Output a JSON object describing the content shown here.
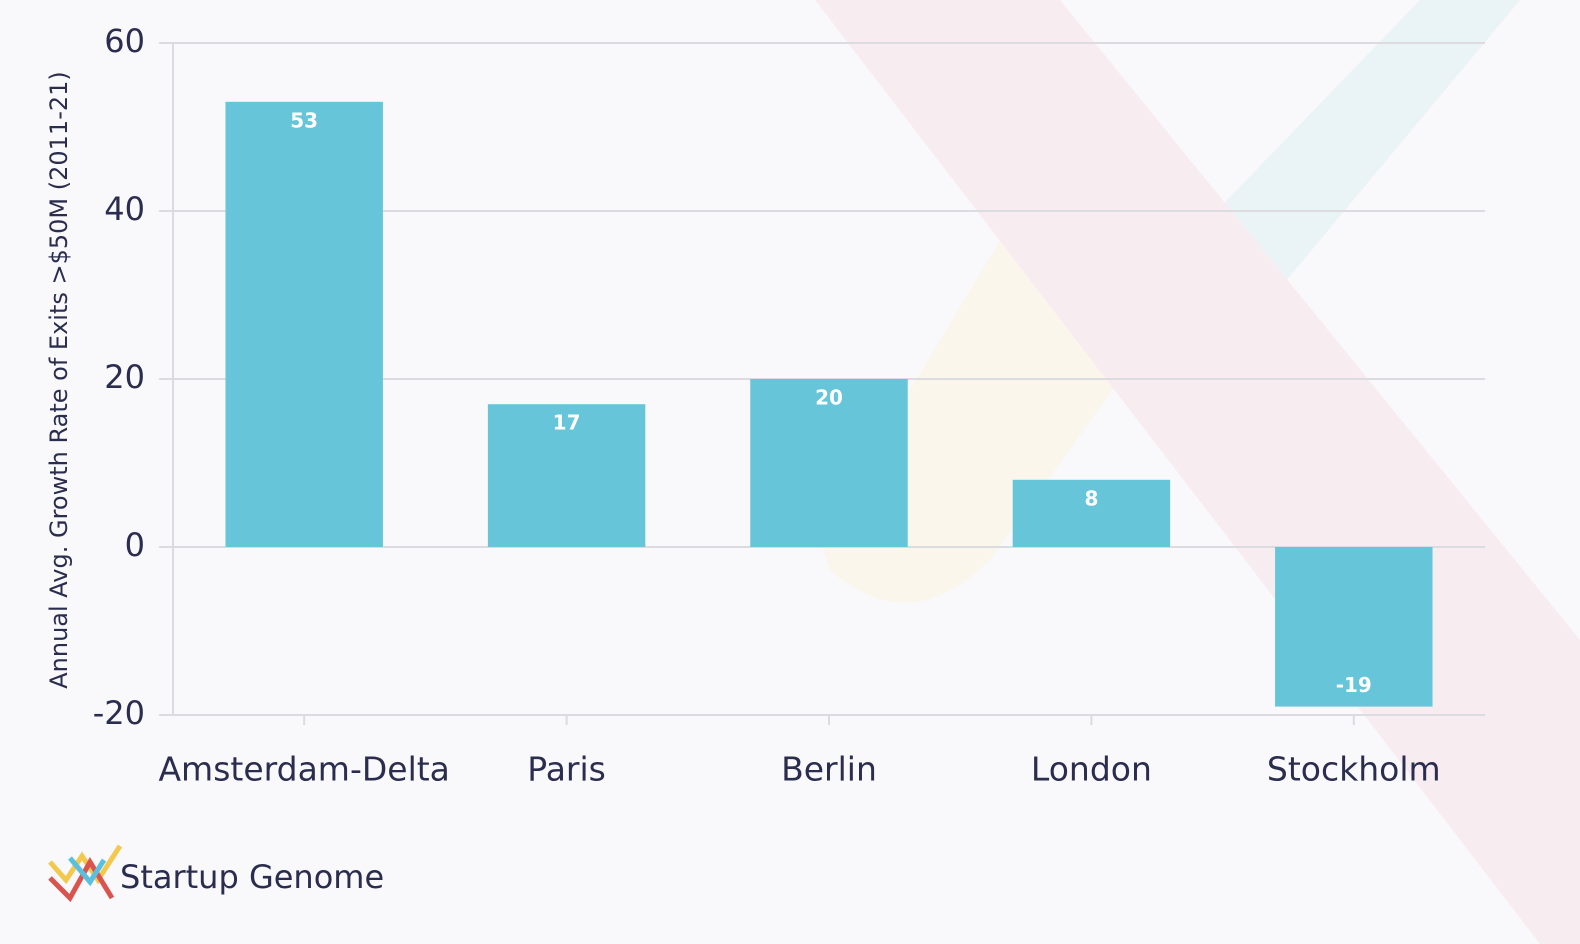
{
  "chart_data": {
    "type": "bar",
    "y_label": "Annual Avg. Growth Rate of Exits >$50M (2011-21)",
    "categories": [
      "Amsterdam-Delta",
      "Paris",
      "Berlin",
      "London",
      "Stockholm"
    ],
    "values": [
      53,
      17,
      20,
      8,
      -19
    ],
    "color": "#67c5d9",
    "ylim": [
      -20,
      60
    ],
    "yticks": [
      -20,
      0,
      20,
      40,
      60
    ],
    "grid": true
  },
  "brand": "Startup Genome"
}
